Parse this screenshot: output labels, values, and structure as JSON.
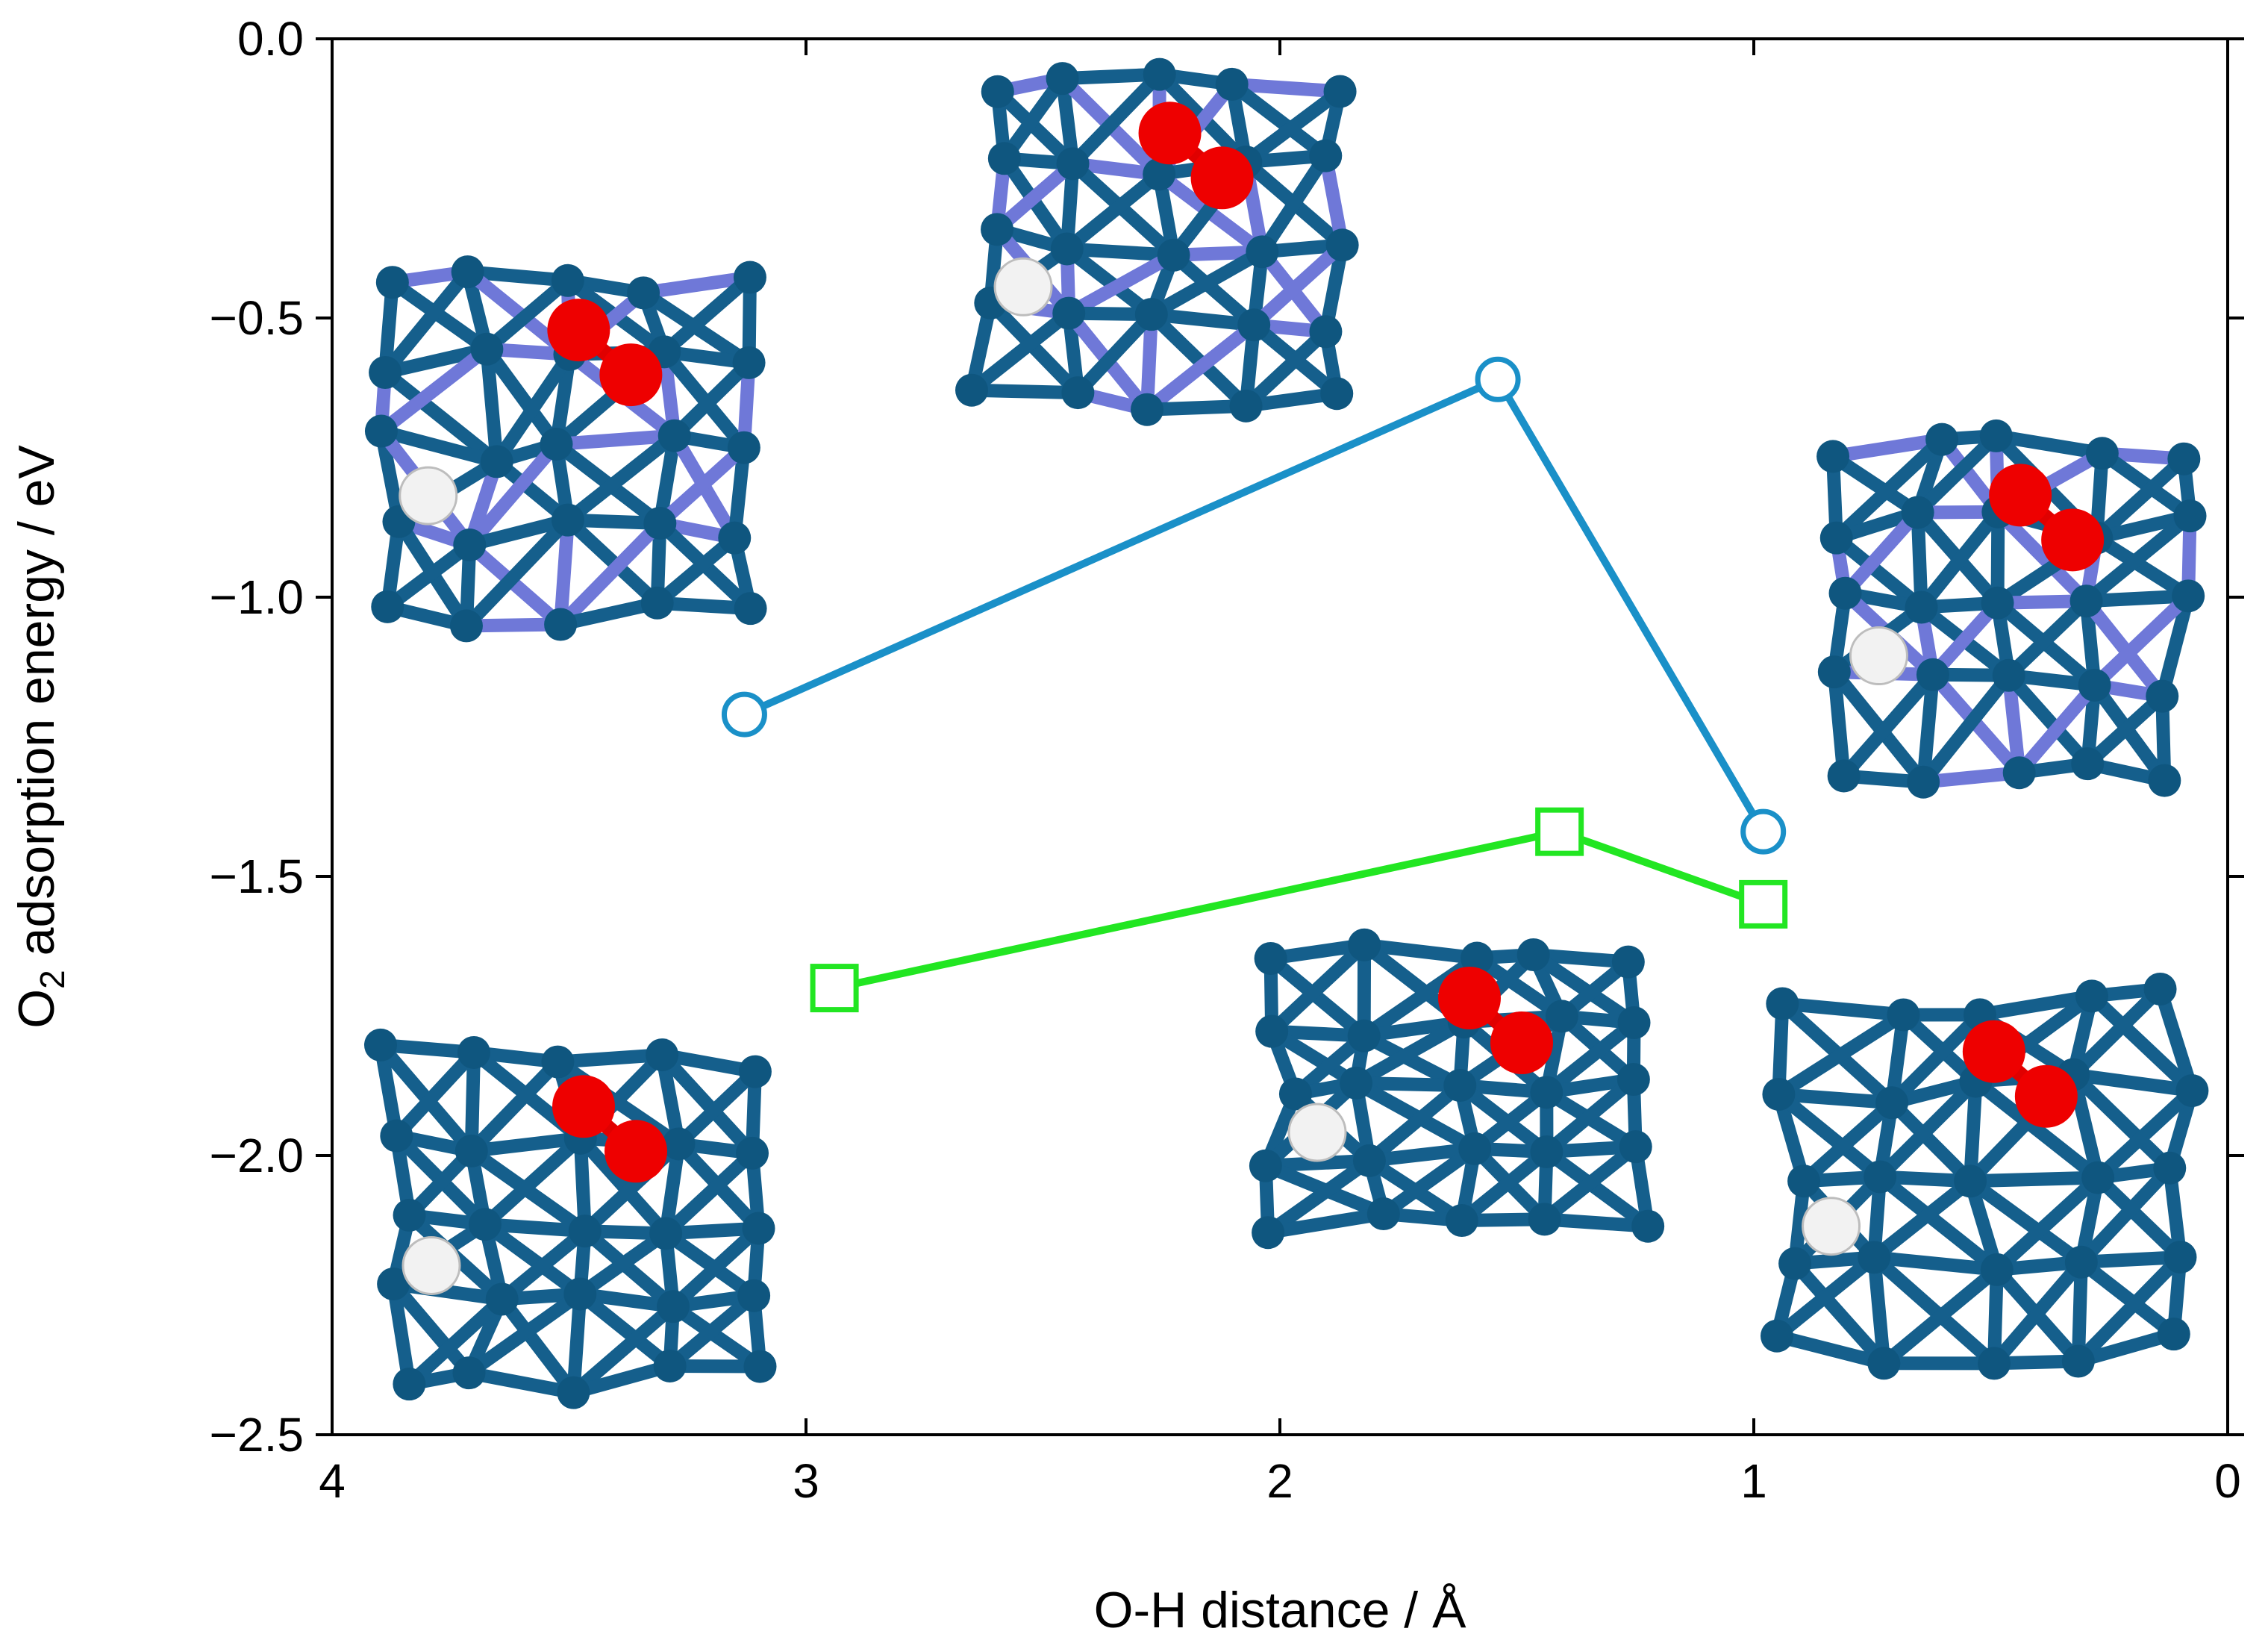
{
  "chart_data": {
    "type": "line",
    "xlabel": "O-H distance / Å",
    "ylabel_main": "O",
    "ylabel_sub": "2",
    "ylabel_rest": " adsorption energy / eV",
    "xlim": [
      4,
      0
    ],
    "ylim": [
      -2.5,
      0.0
    ],
    "x_ticks": [
      4,
      3,
      2,
      1,
      0
    ],
    "x_tick_labels": [
      "4",
      "3",
      "2",
      "1",
      "0"
    ],
    "y_ticks": [
      0.0,
      -0.5,
      -1.0,
      -1.5,
      -2.0,
      -2.5
    ],
    "y_tick_labels": [
      "0.0",
      "−0.5",
      "−1.0",
      "−1.5",
      "−2.0",
      "−2.5"
    ],
    "grid": false,
    "series": [
      {
        "marker": "circle",
        "color": "#1a90c8",
        "x": [
          3.13,
          1.54,
          0.98
        ],
        "y": [
          -1.21,
          -0.61,
          -1.42
        ]
      },
      {
        "marker": "square",
        "color": "#22e622",
        "x": [
          2.94,
          1.41,
          0.98
        ],
        "y": [
          -1.7,
          -1.42,
          -1.55
        ]
      }
    ],
    "insets": [
      {
        "name": "structure-inset-top-left",
        "palette": "Pt-Ni slab with adsorbed O2 and H"
      },
      {
        "name": "structure-inset-top-center",
        "palette": "Pt-Ni slab with adsorbed O2 and H"
      },
      {
        "name": "structure-inset-right-upper",
        "palette": "Pt-Ni slab with adsorbed O2 and H"
      },
      {
        "name": "structure-inset-bottom-left",
        "palette": "Pt slab with adsorbed O2 and H"
      },
      {
        "name": "structure-inset-bottom-center",
        "palette": "Pt slab with adsorbed O2 and H"
      },
      {
        "name": "structure-inset-bottom-right",
        "palette": "Pt slab with adsorbed O2 and H"
      }
    ]
  }
}
